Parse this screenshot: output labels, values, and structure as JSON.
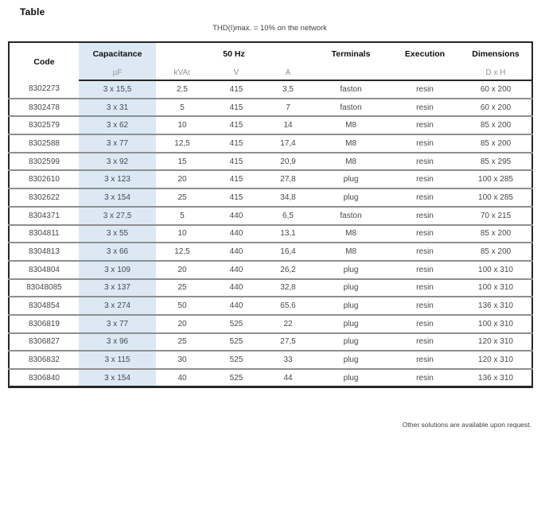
{
  "page": {
    "title": "Table",
    "subtitle": "THD(I)max. = 10% on the network",
    "footnote": "Other solutions are available upon request."
  },
  "colors": {
    "highlight_column": "#dce9f5"
  },
  "table": {
    "header": {
      "code": "Code",
      "capacitance": "Capacitance",
      "freq": "50 Hz",
      "terminals": "Terminals",
      "execution": "Execution",
      "dimensions": "Dimensions",
      "sub": {
        "uf": "µF",
        "kvar": "kVAr",
        "v": "V",
        "a": "A",
        "dxh": "D x H"
      }
    },
    "columns": [
      "code",
      "capacitance",
      "kvar",
      "v",
      "a",
      "terminals",
      "execution",
      "dimensions"
    ],
    "rows": [
      [
        "8302273",
        "3 x 15,5",
        "2,5",
        "415",
        "3,5",
        "faston",
        "resin",
        "60 x 200"
      ],
      [
        "8302478",
        "3 x 31",
        "5",
        "415",
        "7",
        "faston",
        "resin",
        "60 x 200"
      ],
      [
        "8302579",
        "3 x 62",
        "10",
        "415",
        "14",
        "M8",
        "resin",
        "85 x 200"
      ],
      [
        "8302588",
        "3 x 77",
        "12,5",
        "415",
        "17,4",
        "M8",
        "resin",
        "85 x 200"
      ],
      [
        "8302599",
        "3 x 92",
        "15",
        "415",
        "20,9",
        "M8",
        "resin",
        "85 x 295"
      ],
      [
        "8302610",
        "3 x 123",
        "20",
        "415",
        "27,8",
        "plug",
        "resin",
        "100 x 285"
      ],
      [
        "8302622",
        "3 x 154",
        "25",
        "415",
        "34,8",
        "plug",
        "resin",
        "100 x 285"
      ],
      [
        "8304371",
        "3 x 27,5",
        "5",
        "440",
        "6,5",
        "faston",
        "resin",
        "70 x 215"
      ],
      [
        "8304811",
        "3 x 55",
        "10",
        "440",
        "13,1",
        "M8",
        "resin",
        "85 x 200"
      ],
      [
        "8304813",
        "3 x 66",
        "12,5",
        "440",
        "16,4",
        "M8",
        "resin",
        "85 x 200"
      ],
      [
        "8304804",
        "3 x 109",
        "20",
        "440",
        "26,2",
        "plug",
        "resin",
        "100 x 310"
      ],
      [
        "83048085",
        "3 x 137",
        "25",
        "440",
        "32,8",
        "plug",
        "resin",
        "100 x 310"
      ],
      [
        "8304854",
        "3 x 274",
        "50",
        "440",
        "65,6",
        "plug",
        "resin",
        "136 x 310"
      ],
      [
        "8306819",
        "3 x 77",
        "20",
        "525",
        "22",
        "plug",
        "resin",
        "100 x 310"
      ],
      [
        "8306827",
        "3 x 96",
        "25",
        "525",
        "27,5",
        "plug",
        "resin",
        "120 x 310"
      ],
      [
        "8306832",
        "3 x 115",
        "30",
        "525",
        "33",
        "plug",
        "resin",
        "120 x 310"
      ],
      [
        "8306840",
        "3 x 154",
        "40",
        "525",
        "44",
        "plug",
        "resin",
        "136 x 310"
      ]
    ]
  }
}
